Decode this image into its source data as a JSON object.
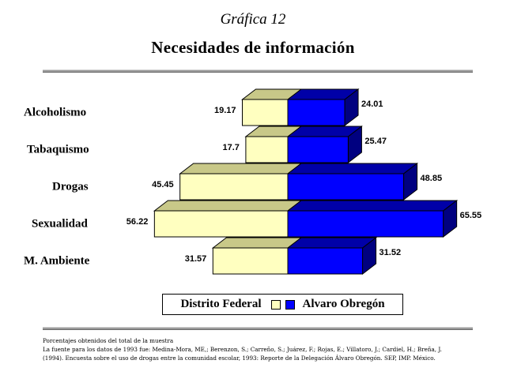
{
  "header": {
    "graph_number": "Gráfica 12",
    "title": "Necesidades de información"
  },
  "chart_data": {
    "type": "bar",
    "orientation": "horizontal-diverging-3d",
    "categories": [
      "Alcoholismo",
      "Tabaquismo",
      "Drogas",
      "Sexualidad",
      "M. Ambiente"
    ],
    "series": [
      {
        "name": "Distrito Federal",
        "values": [
          19.17,
          17.7,
          45.45,
          56.22,
          31.57
        ],
        "value_labels": [
          "19.17",
          "17.7",
          "45.45",
          "56.22",
          "31.57"
        ],
        "color": "#ffffc0"
      },
      {
        "name": "Alvaro Obregón",
        "values": [
          24.01,
          25.47,
          48.85,
          65.55,
          31.52
        ],
        "value_labels": [
          "24.01",
          "25.47",
          "48.85",
          "65.55",
          "31.52"
        ],
        "color": "#0000ff"
      }
    ],
    "legend_position": "bottom",
    "grid": false
  },
  "legend": {
    "series1": "Distrito Federal",
    "series2": "Alvaro Obregón"
  },
  "footnote": {
    "line1": "Porcentajes obtenidos del total de la muestra",
    "line2": "La fuente para los datos de 1993 fue: Medina-Mora, ME,; Berenzon, S.; Carreño, S.; Juárez, F.; Rojas, E.; Villatoro, J.; Cardiel, H.; Breña, J.",
    "line3": "(1994). Encuesta sobre el uso de drogas entre la comunidad escolar, 1993: Reporte de la Delegación Álvaro Obregón. SEP, IMP. México."
  }
}
